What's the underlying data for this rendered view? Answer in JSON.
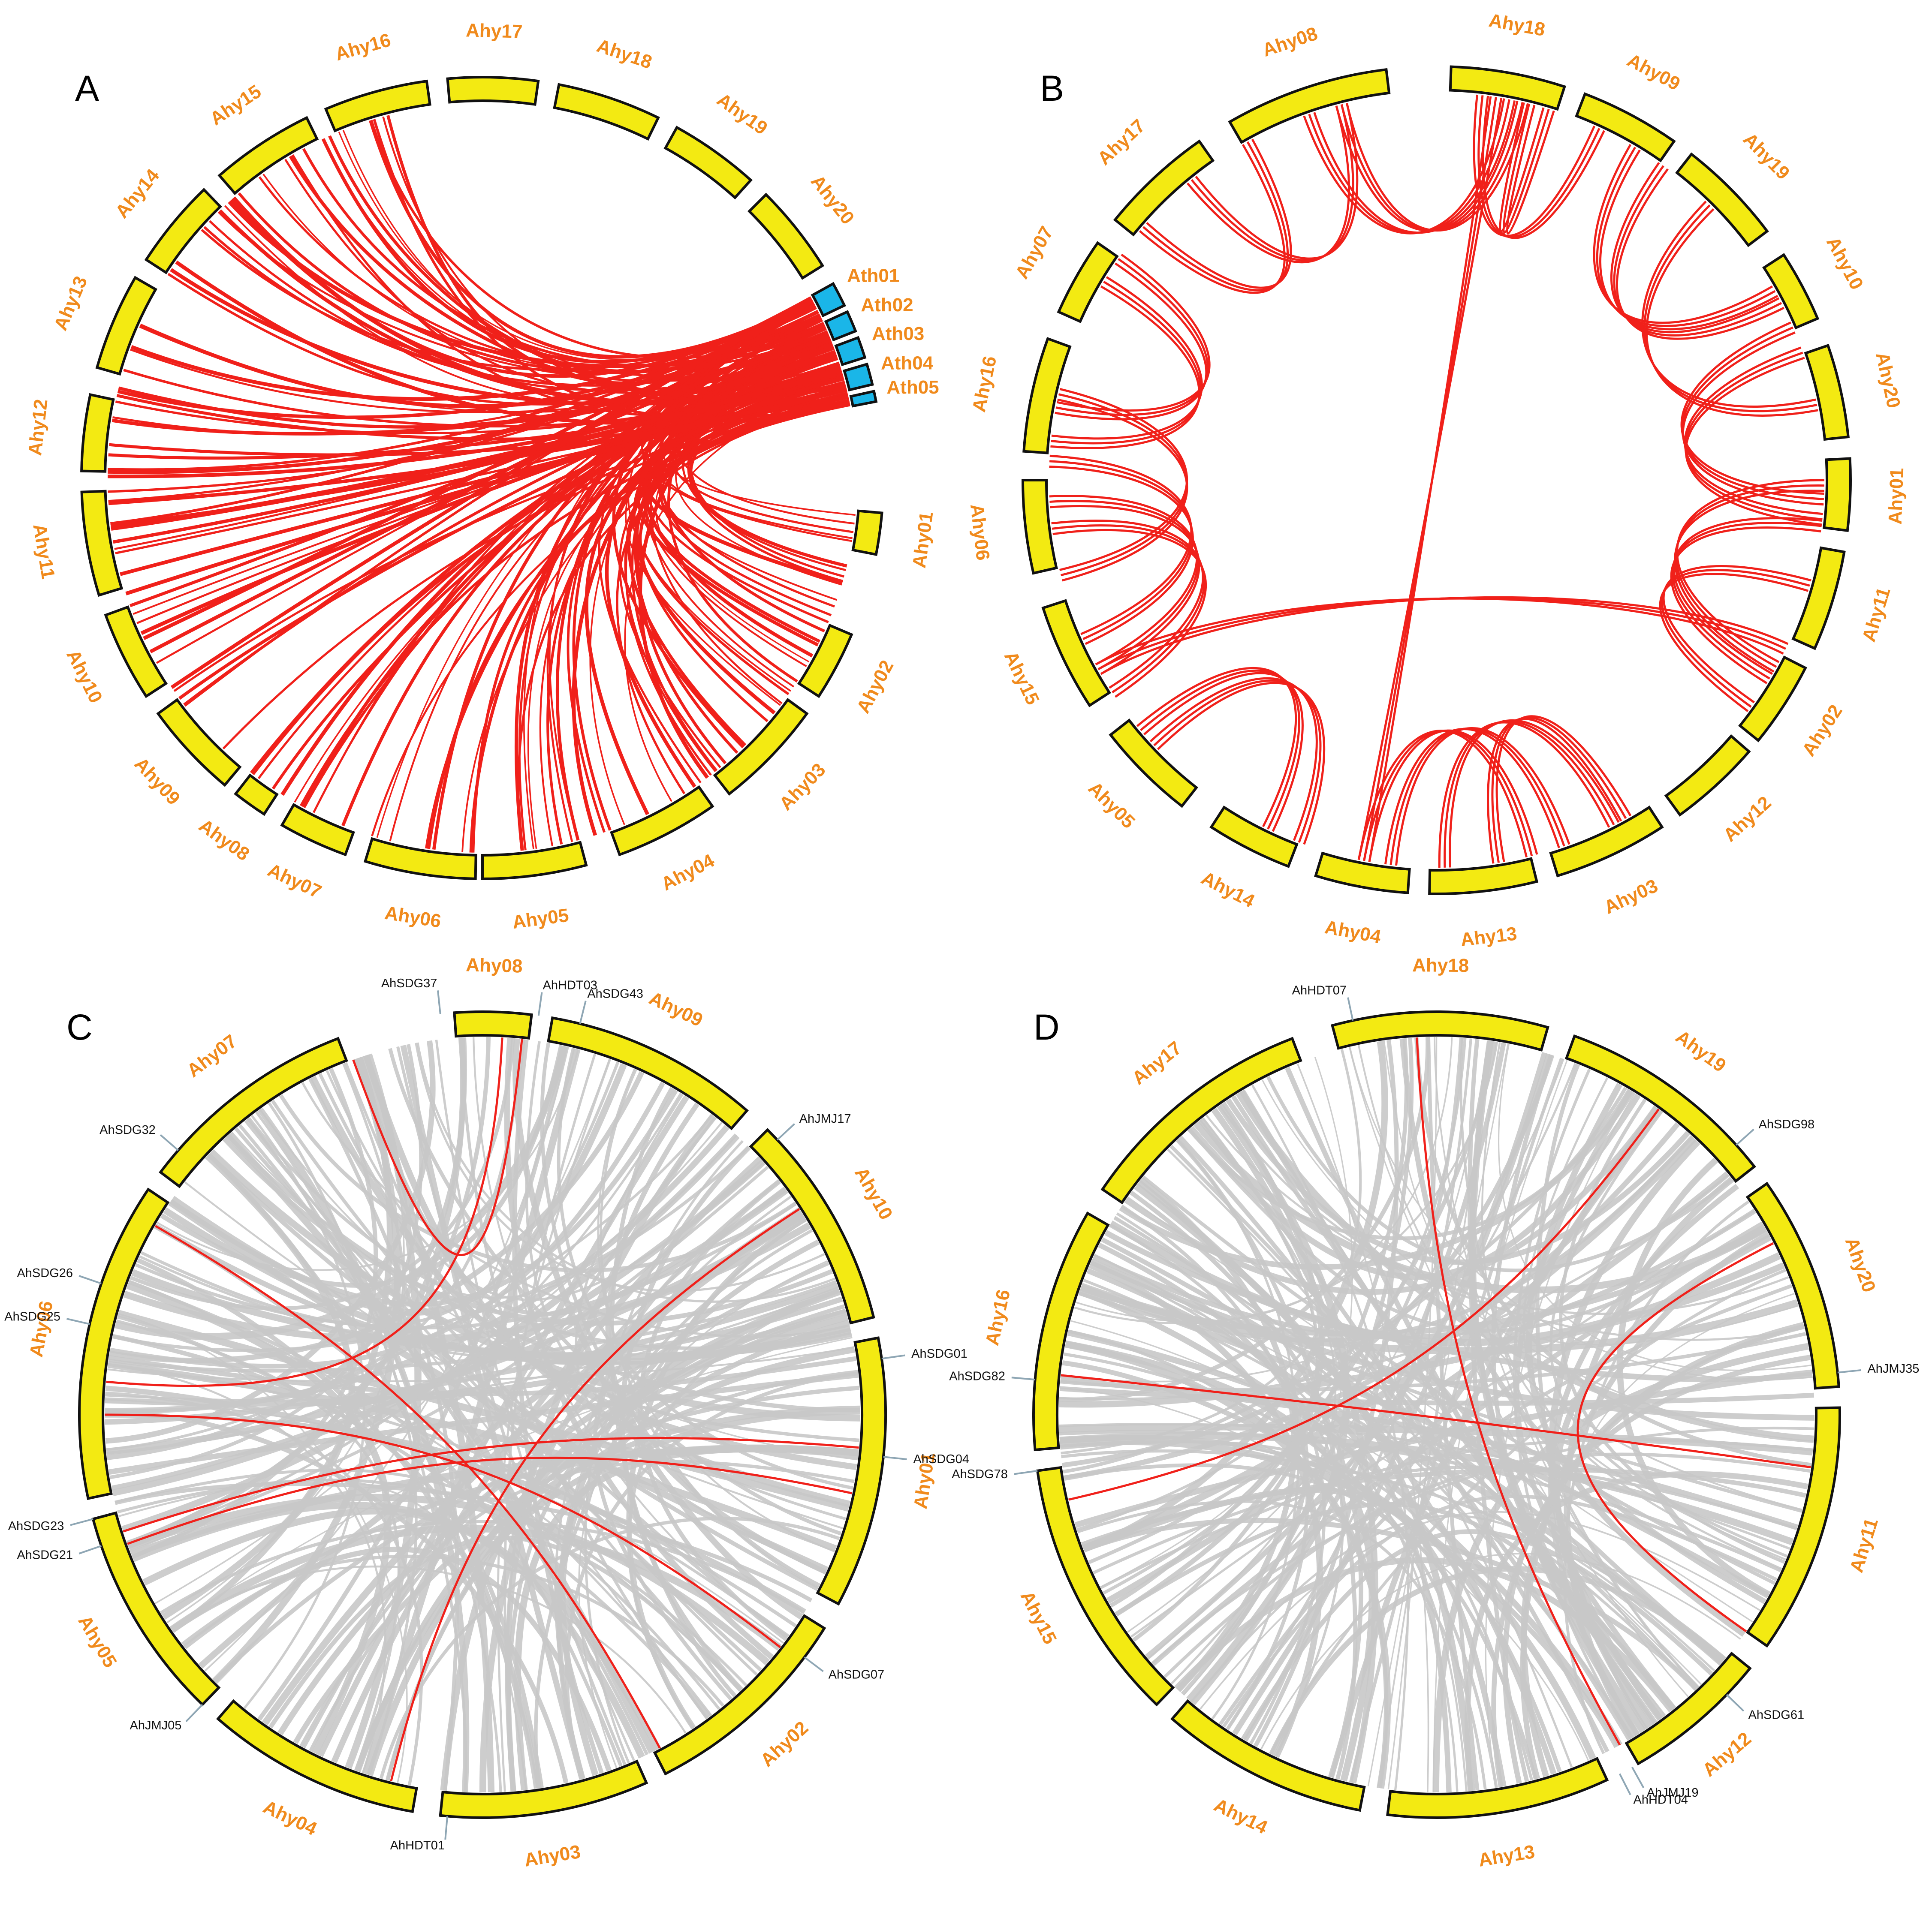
{
  "colors": {
    "chromosome_fill": "#f3ea12",
    "arabidopsis_fill": "#1ab6e8",
    "link_red": "#f0201a",
    "link_gray": "#c8c8c8",
    "label_orange": "#f08a1c",
    "label_black": "#111111",
    "leader": "#8ea6b4"
  },
  "panels": [
    {
      "letter": "A",
      "chromosomes": [
        {
          "name": "Ahy01",
          "color": "yellow"
        },
        {
          "name": "Ahy02",
          "color": "yellow"
        },
        {
          "name": "Ahy03",
          "color": "yellow"
        },
        {
          "name": "Ahy04",
          "color": "yellow"
        },
        {
          "name": "Ahy05",
          "color": "yellow"
        },
        {
          "name": "Ahy06",
          "color": "yellow"
        },
        {
          "name": "Ahy07",
          "color": "yellow"
        },
        {
          "name": "Ahy08",
          "color": "yellow"
        },
        {
          "name": "Ahy09",
          "color": "yellow"
        },
        {
          "name": "Ahy10",
          "color": "yellow"
        },
        {
          "name": "Ahy11",
          "color": "yellow"
        },
        {
          "name": "Ahy12",
          "color": "yellow"
        },
        {
          "name": "Ahy13",
          "color": "yellow"
        },
        {
          "name": "Ahy14",
          "color": "yellow"
        },
        {
          "name": "Ahy15",
          "color": "yellow"
        },
        {
          "name": "Ahy16",
          "color": "yellow"
        },
        {
          "name": "Ahy17",
          "color": "yellow"
        },
        {
          "name": "Ahy18",
          "color": "yellow"
        },
        {
          "name": "Ahy19",
          "color": "yellow"
        },
        {
          "name": "Ahy20",
          "color": "yellow"
        },
        {
          "name": "Ath01",
          "color": "blue"
        },
        {
          "name": "Ath02",
          "color": "blue"
        },
        {
          "name": "Ath03",
          "color": "blue"
        },
        {
          "name": "Ath04",
          "color": "blue"
        },
        {
          "name": "Ath05",
          "color": "blue"
        }
      ]
    },
    {
      "letter": "B",
      "chromosomes": [
        {
          "name": "Ahy18"
        },
        {
          "name": "Ahy09"
        },
        {
          "name": "Ahy19"
        },
        {
          "name": "Ahy10"
        },
        {
          "name": "Ahy20"
        },
        {
          "name": "Ahy01"
        },
        {
          "name": "Ahy11"
        },
        {
          "name": "Ahy02"
        },
        {
          "name": "Ahy12"
        },
        {
          "name": "Ahy03"
        },
        {
          "name": "Ahy13"
        },
        {
          "name": "Ahy04"
        },
        {
          "name": "Ahy14"
        },
        {
          "name": "Ahy05"
        },
        {
          "name": "Ahy15"
        },
        {
          "name": "Ahy06"
        },
        {
          "name": "Ahy16"
        },
        {
          "name": "Ahy07"
        },
        {
          "name": "Ahy17"
        },
        {
          "name": "Ahy08"
        }
      ]
    },
    {
      "letter": "C",
      "chromosomes": [
        {
          "name": "Ahy08"
        },
        {
          "name": "Ahy09"
        },
        {
          "name": "Ahy10"
        },
        {
          "name": "Ahy01"
        },
        {
          "name": "Ahy02"
        },
        {
          "name": "Ahy03"
        },
        {
          "name": "Ahy04"
        },
        {
          "name": "Ahy05"
        },
        {
          "name": "Ahy06"
        },
        {
          "name": "Ahy07"
        }
      ],
      "genes": [
        "AhSDG37",
        "AhHDT03",
        "AhSDG43",
        "AhJMJ17",
        "AhSDG01",
        "AhSDG04",
        "AhSDG07",
        "AhHDT01",
        "AhJMJ05",
        "AhSDG21",
        "AhSDG23",
        "AhSDG25",
        "AhSDG26",
        "AhSDG32"
      ]
    },
    {
      "letter": "D",
      "chromosomes": [
        {
          "name": "Ahy18"
        },
        {
          "name": "Ahy19"
        },
        {
          "name": "Ahy20"
        },
        {
          "name": "Ahy11"
        },
        {
          "name": "Ahy12"
        },
        {
          "name": "Ahy13"
        },
        {
          "name": "Ahy14"
        },
        {
          "name": "Ahy15"
        },
        {
          "name": "Ahy16"
        },
        {
          "name": "Ahy17"
        }
      ],
      "genes": [
        "AhHDT07",
        "AhSDG98",
        "AhJMJ35",
        "AhSDG61",
        "AhJMJ19",
        "AhHDT04",
        "AhSDG78",
        "AhSDG82"
      ]
    }
  ]
}
